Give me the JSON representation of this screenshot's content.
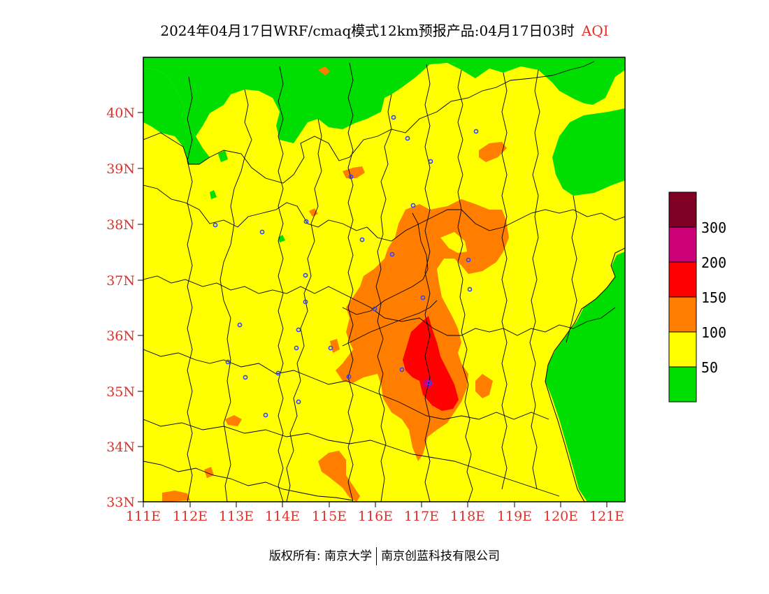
{
  "title": {
    "main": "2024年04月17日WRF/cmaq模式12km预报产品:04月17日03时",
    "variable": "AQI"
  },
  "axes": {
    "lat_labels": [
      "40N",
      "39N",
      "38N",
      "37N",
      "36N",
      "35N",
      "34N",
      "33N"
    ],
    "lon_labels": [
      "111E",
      "112E",
      "113E",
      "114E",
      "115E",
      "116E",
      "117E",
      "118E",
      "119E",
      "120E",
      "121E"
    ]
  },
  "legend": {
    "colors": [
      "#00dd00",
      "#ffff00",
      "#ff7e00",
      "#ff0000",
      "#cc0077",
      "#7e0023"
    ],
    "labels": [
      "50",
      "100",
      "150",
      "200",
      "300"
    ]
  },
  "footer": {
    "copyright": "版权所有: 南京大学",
    "company": "南京创蓝科技有限公司"
  },
  "map_data": {
    "lat_range": [
      33,
      41
    ],
    "lon_range": [
      111,
      121.4
    ],
    "scale": "AQI",
    "dominant_level": "50-100",
    "high_pollution_center": "117E 35N"
  }
}
